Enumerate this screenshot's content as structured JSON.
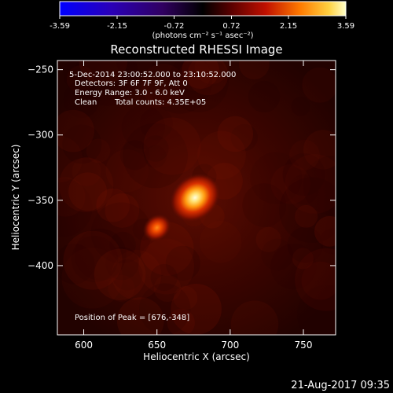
{
  "chart_data": {
    "type": "heatmap",
    "title": "Reconstructed RHESSI Image",
    "xlabel": "Heliocentric X (arcsec)",
    "ylabel": "Heliocentric Y (arcsec)",
    "xlim": [
      582,
      772
    ],
    "ylim": [
      -453,
      -243
    ],
    "xticks": [
      600,
      650,
      700,
      750
    ],
    "yticks": [
      -250,
      -300,
      -350,
      -400
    ],
    "colorbar": {
      "range": [
        -3.59,
        3.59
      ],
      "tick_values": [
        -3.59,
        -2.15,
        -0.72,
        0.72,
        2.15,
        3.59
      ],
      "tick_labels": [
        "-3.59",
        "-2.15",
        "-0.72",
        "0.72",
        "2.15",
        "3.59"
      ],
      "units_label": "(photons cm⁻² s⁻¹ asec⁻²)",
      "colormap": "red-temperature with blue negatives"
    },
    "sources": [
      {
        "x": 676,
        "y": -348,
        "relative_peak": 1.0
      },
      {
        "x": 650,
        "y": -371,
        "relative_peak": 0.62
      }
    ],
    "annotations": {
      "time_range": "5-Dec-2014 23:00:52.000 to 23:10:52.000",
      "detectors": "Detectors: 3F 6F 7F 9F, Att 0",
      "energy_range": "Energy Range: 3.0 - 6.0 keV",
      "method": "Clean",
      "total_counts": "Total counts: 4.35E+05",
      "peak_position": "Position of Peak = [676,-348]"
    }
  },
  "footer": {
    "timestamp": "21-Aug-2017 09:35"
  }
}
